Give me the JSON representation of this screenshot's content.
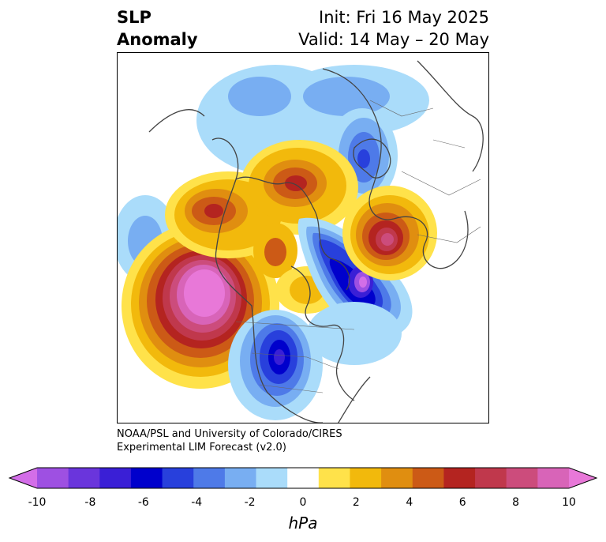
{
  "title": {
    "left_line1": "SLP",
    "left_line2": "Anomaly",
    "right_line1": "Init: Fri 16 May 2025",
    "right_line2": "Valid: 14 May – 20 May"
  },
  "credit": {
    "line1": "NOAA/PSL and University of Colorado/CIRES",
    "line2": "Experimental LIM Forecast (v2.0)"
  },
  "colorbar": {
    "units": "hPa",
    "tick_labels": [
      "-10",
      "-8",
      "-6",
      "-4",
      "-2",
      "0",
      "2",
      "4",
      "6",
      "8",
      "10"
    ],
    "colors": [
      "#d36ee8",
      "#9e50e2",
      "#6a35dc",
      "#3a1fd6",
      "#0000cc",
      "#2840dc",
      "#4e7ae8",
      "#78aef2",
      "#aadcfa",
      "#ffffff",
      "#ffe24a",
      "#f2b90c",
      "#e08e10",
      "#cc5a16",
      "#b42420",
      "#c0384c",
      "#cc4c7c",
      "#d864b8",
      "#e878d8"
    ]
  }
}
